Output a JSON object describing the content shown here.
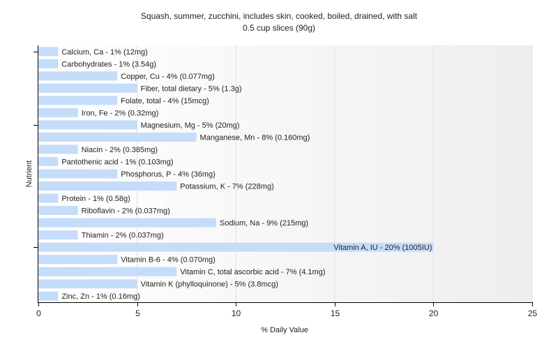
{
  "chart_data": {
    "type": "bar",
    "orientation": "horizontal",
    "title": "Squash, summer, zucchini, includes skin, cooked, boiled, drained, with salt",
    "subtitle": "0.5 cup slices (90g)",
    "xlabel": "% Daily Value",
    "ylabel": "Nutrient",
    "xlim": [
      0,
      25
    ],
    "xticks": [
      "0",
      "5",
      "10",
      "15",
      "20",
      "25"
    ],
    "grid": true,
    "bar_color": "#c5dcfa",
    "bars": [
      {
        "category": "Calcium, Ca",
        "value": 1,
        "label": "Calcium, Ca - 1% (12mg)"
      },
      {
        "category": "Carbohydrates",
        "value": 1,
        "label": "Carbohydrates - 1% (3.54g)"
      },
      {
        "category": "Copper, Cu",
        "value": 4,
        "label": "Copper, Cu - 4% (0.077mg)"
      },
      {
        "category": "Fiber, total dietary",
        "value": 5,
        "label": "Fiber, total dietary - 5% (1.3g)"
      },
      {
        "category": "Folate, total",
        "value": 4,
        "label": "Folate, total - 4% (15mcg)"
      },
      {
        "category": "Iron, Fe",
        "value": 2,
        "label": "Iron, Fe - 2% (0.32mg)"
      },
      {
        "category": "Magnesium, Mg",
        "value": 5,
        "label": "Magnesium, Mg - 5% (20mg)"
      },
      {
        "category": "Manganese, Mn",
        "value": 8,
        "label": "Manganese, Mn - 8% (0.160mg)"
      },
      {
        "category": "Niacin",
        "value": 2,
        "label": "Niacin - 2% (0.385mg)"
      },
      {
        "category": "Pantothenic acid",
        "value": 1,
        "label": "Pantothenic acid - 1% (0.103mg)"
      },
      {
        "category": "Phosphorus, P",
        "value": 4,
        "label": "Phosphorus, P - 4% (36mg)"
      },
      {
        "category": "Potassium, K",
        "value": 7,
        "label": "Potassium, K - 7% (228mg)"
      },
      {
        "category": "Protein",
        "value": 1,
        "label": "Protein - 1% (0.58g)"
      },
      {
        "category": "Riboflavin",
        "value": 2,
        "label": "Riboflavin - 2% (0.037mg)"
      },
      {
        "category": "Sodium, Na",
        "value": 9,
        "label": "Sodium, Na - 9% (215mg)"
      },
      {
        "category": "Thiamin",
        "value": 2,
        "label": "Thiamin - 2% (0.037mg)"
      },
      {
        "category": "Vitamin A, IU",
        "value": 20,
        "label": "Vitamin A, IU - 20% (1005IU)"
      },
      {
        "category": "Vitamin B-6",
        "value": 4,
        "label": "Vitamin B-6 - 4% (0.070mg)"
      },
      {
        "category": "Vitamin C, total ascorbic acid",
        "value": 7,
        "label": "Vitamin C, total ascorbic acid - 7% (4.1mg)"
      },
      {
        "category": "Vitamin K (phylloquinone)",
        "value": 5,
        "label": "Vitamin K (phylloquinone) - 5% (3.8mcg)"
      },
      {
        "category": "Zinc, Zn",
        "value": 1,
        "label": "Zinc, Zn - 1% (0.16mg)"
      }
    ]
  }
}
